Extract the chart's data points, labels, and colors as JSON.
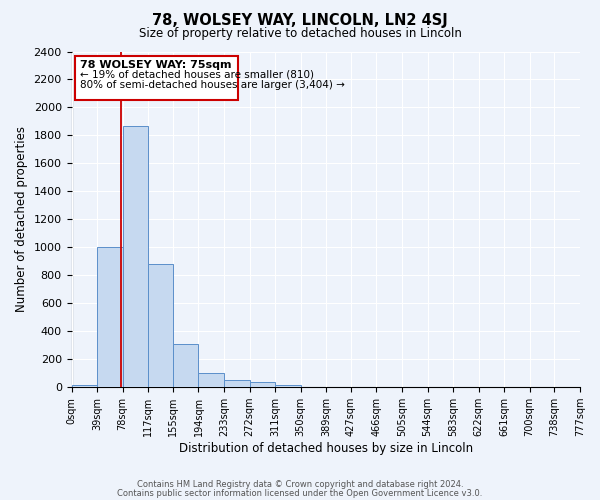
{
  "title": "78, WOLSEY WAY, LINCOLN, LN2 4SJ",
  "subtitle": "Size of property relative to detached houses in Lincoln",
  "xlabel": "Distribution of detached houses by size in Lincoln",
  "ylabel": "Number of detached properties",
  "footnote1": "Contains HM Land Registry data © Crown copyright and database right 2024.",
  "footnote2": "Contains public sector information licensed under the Open Government Licence v3.0.",
  "bar_edges": [
    0,
    39,
    78,
    117,
    155,
    194,
    233,
    272,
    311,
    350,
    389,
    427,
    466,
    505,
    544,
    583,
    622,
    661,
    700,
    738,
    777
  ],
  "bar_heights": [
    18,
    1000,
    1870,
    880,
    310,
    105,
    50,
    35,
    18,
    5,
    0,
    0,
    0,
    0,
    0,
    0,
    0,
    0,
    0,
    0
  ],
  "tick_labels": [
    "0sqm",
    "39sqm",
    "78sqm",
    "117sqm",
    "155sqm",
    "194sqm",
    "233sqm",
    "272sqm",
    "311sqm",
    "350sqm",
    "389sqm",
    "427sqm",
    "466sqm",
    "505sqm",
    "544sqm",
    "583sqm",
    "622sqm",
    "661sqm",
    "700sqm",
    "738sqm",
    "777sqm"
  ],
  "bar_color": "#c6d9f0",
  "bar_edge_color": "#5b8fca",
  "red_line_x": 75,
  "ylim": [
    0,
    2400
  ],
  "yticks": [
    0,
    200,
    400,
    600,
    800,
    1000,
    1200,
    1400,
    1600,
    1800,
    2000,
    2200,
    2400
  ],
  "annotation_title": "78 WOLSEY WAY: 75sqm",
  "annotation_line1": "← 19% of detached houses are smaller (810)",
  "annotation_line2": "80% of semi-detached houses are larger (3,404) →",
  "background_color": "#eef3fb",
  "plot_bg_color": "#eef3fb",
  "grid_color": "#ffffff"
}
